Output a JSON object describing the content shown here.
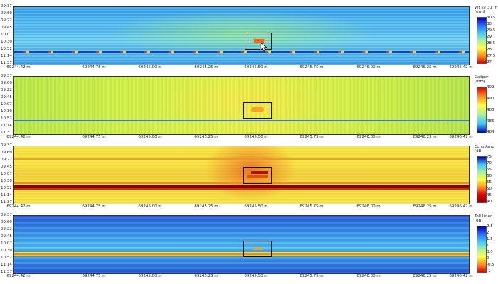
{
  "time_ticks": [
    "09:37",
    "09:60",
    "09:22",
    "09:45",
    "10:07",
    "10:30",
    "10:52",
    "11:14",
    "11:37"
  ],
  "distance_ticks": [
    "69244.42 m",
    "69244.75 m",
    "69245.00 m",
    "69245.25 m",
    "69245.50 m",
    "69245.75 m",
    "69246.00 m",
    "69246.25 m",
    "69246.42 m"
  ],
  "panels": [
    {
      "title": "Wt 27.31 In",
      "unit": "[mm]",
      "scale": [
        "30.5",
        "30",
        "29.5",
        "29",
        "28.5",
        "28",
        "27.5",
        "27"
      ],
      "gradient": "linear-gradient(to bottom,#0000b0,#2a6cff,#3cc8ff,#a8f0a0,#ffff40,#ff9020,#e00000)",
      "background": "#4fb8f0"
    },
    {
      "title": "Caliper",
      "unit": "[mm]",
      "scale": [
        "492",
        "490",
        "488",
        "486",
        "484"
      ],
      "gradient": "linear-gradient(to bottom,#e00000,#ff9020,#ffff40,#a8f0a0,#3cc8ff,#0000b0)",
      "background": "#c8ee48"
    },
    {
      "title": "Echo Amp",
      "unit": "[dB]",
      "scale": [
        "75",
        "70",
        "65",
        "60",
        "55",
        "50",
        "45",
        "40"
      ],
      "gradient": "linear-gradient(to bottom,#0000b0,#3cc8ff,#a8f0a0,#ffff40,#ff9020,#e00000,#900000)",
      "background": "#f2e640"
    },
    {
      "title": "Toll Lineo",
      "unit": "[dB]",
      "scale": [
        "2.5",
        "2",
        "1.5",
        "1",
        "0.5",
        "0",
        "-0.5",
        "-1"
      ],
      "gradient": "linear-gradient(to bottom,#0000b0,#2a6cff,#3cc8ff,#a8f0a0,#ffff40,#ff9020,#e00000)",
      "background": "#50b4ec"
    }
  ]
}
